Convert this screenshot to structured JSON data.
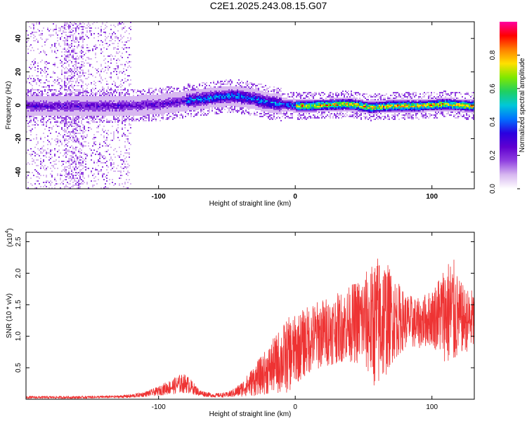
{
  "title": "C2E1.2025.243.08.15.G07",
  "colors": {
    "snr_line": "#ee3333",
    "cmap": [
      "#ffffff",
      "#d8b8f0",
      "#9040e0",
      "#6000d0",
      "#2a00e0",
      "#0070ff",
      "#00c8d8",
      "#20d060",
      "#80e800",
      "#ffe000",
      "#ff8000",
      "#ff0000",
      "#ff00a0"
    ]
  },
  "chart_data": [
    {
      "type": "heatmap",
      "name": "spectrogram",
      "xlabel": "Height of straight line (km)",
      "ylabel": "Frequency (Hz)",
      "xlim": [
        -197,
        131
      ],
      "ylim": [
        -50,
        50
      ],
      "xticks": [
        -100,
        0,
        100
      ],
      "xtick_labels": [
        "-100",
        "0",
        "100"
      ],
      "yticks": [
        -40,
        -20,
        0,
        20,
        40
      ],
      "ytick_labels": [
        "-40",
        "-20",
        "0",
        "20",
        "40"
      ],
      "ridge_x": [
        -195,
        -180,
        -160,
        -140,
        -120,
        -100,
        -80,
        -60,
        -45,
        -30,
        -20,
        -10,
        0,
        10,
        20,
        40,
        55,
        70,
        90,
        110,
        125,
        131
      ],
      "ridge_y": [
        0,
        0,
        0,
        0,
        0,
        1,
        3,
        5,
        6,
        4,
        2,
        1,
        0,
        0,
        0.5,
        1,
        -1,
        0,
        0,
        1,
        0,
        0
      ],
      "colorbar": {
        "label": "Normalized spectral amplitude",
        "range": [
          0,
          1
        ],
        "ticks": [
          0.0,
          0.2,
          0.4,
          0.6,
          0.8
        ],
        "tick_labels": [
          "0.0",
          "0.2",
          "0.4",
          "0.6",
          "0.8"
        ]
      }
    },
    {
      "type": "line",
      "name": "snr",
      "xlabel": "Height of straight line (km)",
      "ylabel": "SNR (10 * v/v)",
      "exponent_label": "(x10",
      "exponent_power": "4",
      "xlim": [
        -197,
        131
      ],
      "ylim": [
        0,
        2.65
      ],
      "xticks": [
        -100,
        0,
        100
      ],
      "xtick_labels": [
        "-100",
        "0",
        "100"
      ],
      "yticks": [
        0.5,
        1.0,
        1.5,
        2.0,
        2.5
      ],
      "ytick_labels": [
        "0.5",
        "1.0",
        "1.5",
        "2.0",
        "2.5"
      ],
      "series": [
        {
          "name": "SNR",
          "x": [
            -197,
            -160,
            -130,
            -120,
            -110,
            -100,
            -95,
            -90,
            -85,
            -80,
            -75,
            -70,
            -60,
            -50,
            -45,
            -40,
            -35,
            -30,
            -25,
            -20,
            -15,
            -10,
            -5,
            0,
            10,
            20,
            30,
            40,
            50,
            55,
            60,
            65,
            70,
            80,
            90,
            100,
            110,
            115,
            120,
            125,
            131
          ],
          "mean": [
            0.03,
            0.03,
            0.04,
            0.05,
            0.08,
            0.13,
            0.17,
            0.2,
            0.24,
            0.25,
            0.18,
            0.1,
            0.06,
            0.07,
            0.1,
            0.15,
            0.22,
            0.3,
            0.38,
            0.45,
            0.55,
            0.62,
            0.7,
            0.78,
            0.95,
            1.05,
            1.12,
            1.2,
            1.25,
            1.2,
            1.2,
            1.28,
            1.3,
            1.25,
            1.2,
            1.3,
            1.38,
            1.35,
            1.3,
            1.25,
            1.25
          ],
          "amp": [
            0.02,
            0.02,
            0.02,
            0.03,
            0.04,
            0.07,
            0.1,
            0.12,
            0.15,
            0.15,
            0.1,
            0.05,
            0.03,
            0.04,
            0.07,
            0.11,
            0.17,
            0.25,
            0.3,
            0.38,
            0.45,
            0.55,
            0.6,
            0.55,
            0.55,
            0.55,
            0.55,
            0.6,
            0.75,
            0.9,
            1.1,
            1.0,
            0.75,
            0.45,
            0.4,
            0.45,
            0.8,
            0.95,
            0.6,
            0.5,
            0.5
          ]
        }
      ]
    }
  ]
}
